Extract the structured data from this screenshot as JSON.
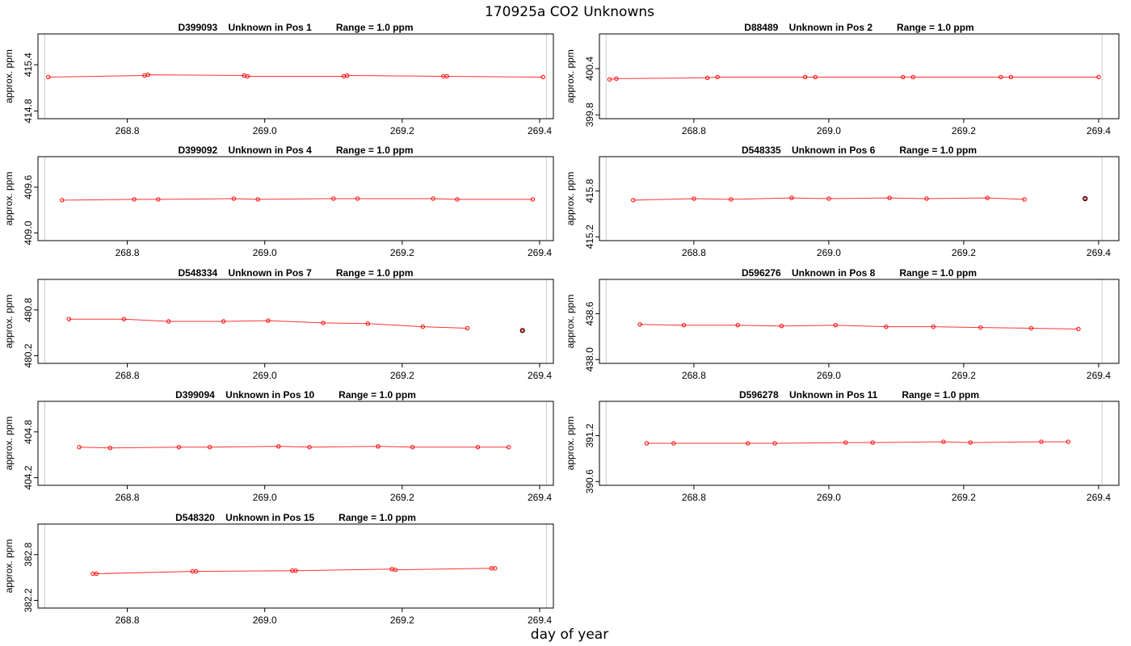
{
  "figure": {
    "title": "170925a  CO2 Unknowns",
    "xlabel": "day of year"
  },
  "colors": {
    "series_line": "#ff3333",
    "series_point": "#ff0000",
    "outlier_point": "#000000",
    "flag_line": "#cccccc",
    "axis": "#000000"
  },
  "chart_data": [
    {
      "type": "line",
      "title": "D399093    Unknown in Pos 1         Range = 1.0 ppm",
      "ylabel": "approx. ppm",
      "xlim": [
        268.67,
        269.42
      ],
      "ylim": [
        414.7,
        415.8
      ],
      "xticks": [
        268.8,
        269.0,
        269.2,
        269.4
      ],
      "xtick_labels": [
        "268.8",
        "269.0",
        "269.2",
        "269.4"
      ],
      "yticks": [
        414.8,
        415.4
      ],
      "ytick_labels": [
        "414.8",
        "415.4"
      ],
      "flag_lines": [
        268.68,
        269.41
      ],
      "x": [
        268.685,
        268.825,
        268.83,
        268.97,
        268.975,
        269.115,
        269.12,
        269.26,
        269.265,
        269.405
      ],
      "y": [
        415.24,
        415.26,
        415.27,
        415.26,
        415.25,
        415.25,
        415.26,
        415.25,
        415.25,
        415.24
      ],
      "outliers": []
    },
    {
      "type": "line",
      "title": "D88489    Unknown in Pos 2         Range = 1.0 ppm",
      "ylabel": "approx. ppm",
      "xlim": [
        268.66,
        269.43
      ],
      "ylim": [
        399.75,
        400.85
      ],
      "xticks": [
        268.8,
        269.0,
        269.2,
        269.4
      ],
      "xtick_labels": [
        "268.8",
        "269.0",
        "269.2",
        "269.4"
      ],
      "yticks": [
        399.8,
        400.4
      ],
      "ytick_labels": [
        "399.8",
        "400.4"
      ],
      "flag_lines": [
        268.67,
        269.405
      ],
      "x": [
        268.675,
        268.685,
        268.82,
        268.835,
        268.965,
        268.98,
        269.11,
        269.125,
        269.255,
        269.27,
        269.4
      ],
      "y": [
        400.26,
        400.27,
        400.28,
        400.29,
        400.29,
        400.29,
        400.29,
        400.29,
        400.29,
        400.29,
        400.29
      ],
      "outliers": []
    },
    {
      "type": "line",
      "title": "D399092    Unknown in Pos 4         Range = 1.0 ppm",
      "ylabel": "approx. ppm",
      "xlim": [
        268.67,
        269.42
      ],
      "ylim": [
        408.9,
        410.0
      ],
      "xticks": [
        268.8,
        269.0,
        269.2,
        269.4
      ],
      "xtick_labels": [
        "268.8",
        "269.0",
        "269.2",
        "269.4"
      ],
      "yticks": [
        409.0,
        409.6
      ],
      "ytick_labels": [
        "409.0",
        "409.6"
      ],
      "flag_lines": [
        268.68,
        269.41
      ],
      "x": [
        268.705,
        268.81,
        268.845,
        268.955,
        268.99,
        269.1,
        269.135,
        269.245,
        269.28,
        269.39
      ],
      "y": [
        409.43,
        409.44,
        409.44,
        409.45,
        409.44,
        409.45,
        409.45,
        409.45,
        409.44,
        409.44
      ],
      "outliers": []
    },
    {
      "type": "line",
      "title": "D548335    Unknown in Pos 6         Range = 1.0 ppm",
      "ylabel": "approx. ppm",
      "xlim": [
        268.66,
        269.43
      ],
      "ylim": [
        415.15,
        416.25
      ],
      "xticks": [
        268.8,
        269.0,
        269.2,
        269.4
      ],
      "xtick_labels": [
        "268.8",
        "269.0",
        "269.2",
        "269.4"
      ],
      "yticks": [
        415.2,
        415.8
      ],
      "ytick_labels": [
        "415.2",
        "415.8"
      ],
      "flag_lines": [
        268.67,
        269.405
      ],
      "x": [
        268.71,
        268.8,
        268.855,
        268.945,
        269.0,
        269.09,
        269.145,
        269.235,
        269.29
      ],
      "y": [
        415.68,
        415.7,
        415.69,
        415.71,
        415.7,
        415.71,
        415.7,
        415.71,
        415.69
      ],
      "outliers": [
        {
          "x": 269.38,
          "y": 415.7
        }
      ]
    },
    {
      "type": "line",
      "title": "D548334    Unknown in Pos 7         Range = 1.0 ppm",
      "ylabel": "approx. ppm",
      "xlim": [
        268.67,
        269.42
      ],
      "ylim": [
        480.1,
        481.2
      ],
      "xticks": [
        268.8,
        269.0,
        269.2,
        269.4
      ],
      "xtick_labels": [
        "268.8",
        "269.0",
        "269.2",
        "269.4"
      ],
      "yticks": [
        480.2,
        480.8
      ],
      "ytick_labels": [
        "480.2",
        "480.8"
      ],
      "flag_lines": [
        268.68,
        269.41
      ],
      "x": [
        268.715,
        268.795,
        268.86,
        268.94,
        269.005,
        269.085,
        269.15,
        269.23,
        269.295
      ],
      "y": [
        480.68,
        480.68,
        480.65,
        480.65,
        480.66,
        480.63,
        480.62,
        480.58,
        480.56
      ],
      "outliers": [
        {
          "x": 269.375,
          "y": 480.53
        }
      ]
    },
    {
      "type": "line",
      "title": "D596276    Unknown in Pos 8         Range = 1.0 ppm",
      "ylabel": "approx. ppm",
      "xlim": [
        268.66,
        269.43
      ],
      "ylim": [
        437.95,
        439.05
      ],
      "xticks": [
        268.8,
        269.0,
        269.2,
        269.4
      ],
      "xtick_labels": [
        "268.8",
        "269.0",
        "269.2",
        "269.4"
      ],
      "yticks": [
        438.0,
        438.6
      ],
      "ytick_labels": [
        "438.0",
        "438.6"
      ],
      "flag_lines": [
        268.67,
        269.405
      ],
      "x": [
        268.72,
        268.785,
        268.865,
        268.93,
        269.01,
        269.085,
        269.155,
        269.225,
        269.3,
        269.37
      ],
      "y": [
        438.46,
        438.45,
        438.45,
        438.44,
        438.45,
        438.43,
        438.43,
        438.42,
        438.41,
        438.4
      ],
      "outliers": []
    },
    {
      "type": "line",
      "title": "D399094    Unknown in Pos 10         Range = 1.0 ppm",
      "ylabel": "approx. ppm",
      "xlim": [
        268.67,
        269.42
      ],
      "ylim": [
        404.1,
        405.2
      ],
      "xticks": [
        268.8,
        269.0,
        269.2,
        269.4
      ],
      "xtick_labels": [
        "268.8",
        "269.0",
        "269.2",
        "269.4"
      ],
      "yticks": [
        404.2,
        404.8
      ],
      "ytick_labels": [
        "404.2",
        "404.8"
      ],
      "flag_lines": [
        268.68,
        269.41
      ],
      "x": [
        268.73,
        268.775,
        268.875,
        268.92,
        269.02,
        269.065,
        269.165,
        269.215,
        269.31,
        269.355
      ],
      "y": [
        404.6,
        404.59,
        404.6,
        404.6,
        404.61,
        404.6,
        404.61,
        404.6,
        404.6,
        404.6
      ],
      "outliers": []
    },
    {
      "type": "line",
      "title": "D596278    Unknown in Pos 11         Range = 1.0 ppm",
      "ylabel": "approx. ppm",
      "xlim": [
        268.66,
        269.43
      ],
      "ylim": [
        390.55,
        391.65
      ],
      "xticks": [
        268.8,
        269.0,
        269.2,
        269.4
      ],
      "xtick_labels": [
        "268.8",
        "269.0",
        "269.2",
        "269.4"
      ],
      "yticks": [
        390.6,
        391.2
      ],
      "ytick_labels": [
        "390.6",
        "391.2"
      ],
      "flag_lines": [
        268.67,
        269.405
      ],
      "x": [
        268.73,
        268.77,
        268.88,
        268.92,
        269.025,
        269.065,
        269.17,
        269.21,
        269.315,
        269.355
      ],
      "y": [
        391.1,
        391.1,
        391.1,
        391.1,
        391.11,
        391.11,
        391.12,
        391.11,
        391.12,
        391.12
      ],
      "outliers": []
    },
    {
      "type": "line",
      "title": "D548320    Unknown in Pos 15         Range = 1.0 ppm",
      "ylabel": "approx. ppm",
      "xlim": [
        268.67,
        269.42
      ],
      "ylim": [
        382.1,
        383.2
      ],
      "xticks": [
        268.8,
        269.0,
        269.2,
        269.4
      ],
      "xtick_labels": [
        "268.8",
        "269.0",
        "269.2",
        "269.4"
      ],
      "yticks": [
        382.2,
        382.8
      ],
      "ytick_labels": [
        "382.2",
        "382.8"
      ],
      "flag_lines": [
        268.68,
        269.41
      ],
      "x": [
        268.75,
        268.755,
        268.895,
        268.9,
        269.04,
        269.045,
        269.185,
        269.19,
        269.33,
        269.335
      ],
      "y": [
        382.55,
        382.55,
        382.58,
        382.58,
        382.59,
        382.59,
        382.61,
        382.6,
        382.62,
        382.62
      ],
      "outliers": []
    }
  ]
}
